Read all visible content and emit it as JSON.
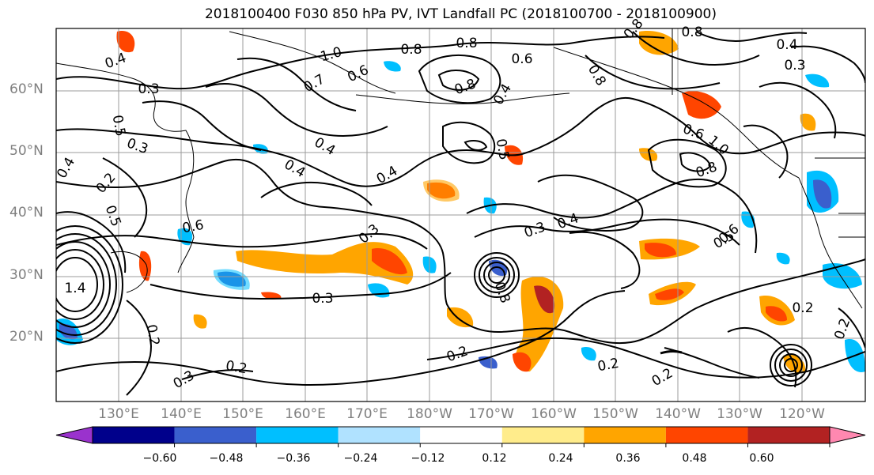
{
  "title": "2018100400 F030 850 hPa PV, IVT Landfall PC (2018100700 - 2018100900)",
  "lat_labels": [
    "60°N",
    "50°N",
    "40°N",
    "30°N",
    "20°N"
  ],
  "lon_labels": [
    "130°E",
    "140°E",
    "150°E",
    "160°E",
    "170°E",
    "180°W",
    "170°W",
    "160°W",
    "150°W",
    "140°W",
    "130°W",
    "120°W"
  ],
  "colorbar": {
    "ticks": [
      "−0.60",
      "−0.48",
      "−0.36",
      "−0.24",
      "−0.12",
      "0.12",
      "0.24",
      "0.36",
      "0.48",
      "0.60"
    ],
    "colors": [
      "#9a32cd",
      "#00008b",
      "#3a5fcd",
      "#00bfff",
      "#b0e2ff",
      "#ffffff",
      "#ffec8b",
      "#ffa500",
      "#ff4500",
      "#b22222",
      "#ff88b0"
    ]
  },
  "contour_labels": [
    "0.4",
    "0.3",
    "0.5",
    "0.3",
    "0.4",
    "0.2",
    "0.5",
    "0.6",
    "1.4",
    "0.2",
    "0.3",
    "0.2",
    "1.0",
    "0.7",
    "0.6",
    "0.8",
    "0.8",
    "0.4",
    "0.4",
    "0.4",
    "0.3",
    "0.5",
    "0.3",
    "0.4",
    "0.3",
    "0.2",
    "0.8",
    "0.2",
    "0.2",
    "0.2",
    "0.4",
    "0.8",
    "0.6",
    "0.8",
    "0.8",
    "0.6",
    "0.2",
    "0.8",
    "0.5",
    "1.0",
    "0.8",
    "0.4",
    "0.3",
    "0.6"
  ]
}
